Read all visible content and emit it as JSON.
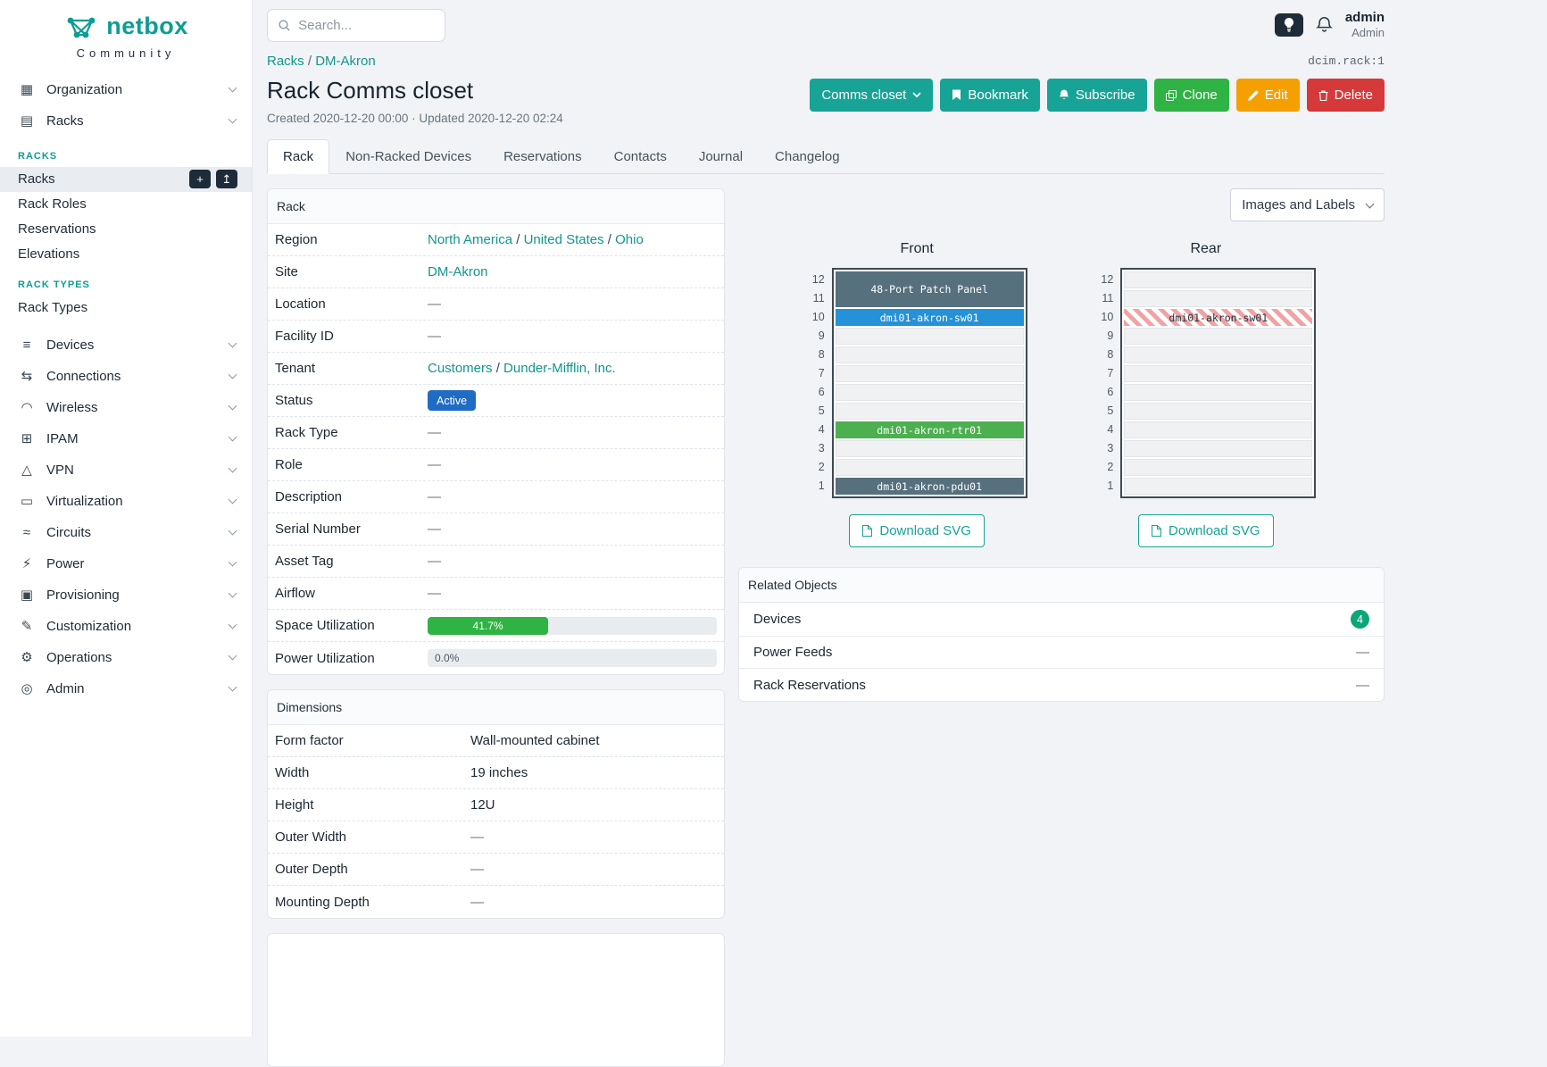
{
  "colors": {
    "accent": "#17a497",
    "green": "#2fb344",
    "orange": "#f59f00",
    "red": "#d63939",
    "status_blue": "#206bc4",
    "progress_green": "#2fb344",
    "badge_green": "#0ca678"
  },
  "brand": {
    "name": "netbox",
    "tagline": "Community"
  },
  "topbar": {
    "search_placeholder": "Search...",
    "user_name": "admin",
    "user_role": "Admin"
  },
  "sidebar": {
    "items": [
      {
        "label": "Organization",
        "icon": "building-icon"
      },
      {
        "label": "Racks",
        "icon": "rack-icon",
        "expanded": true,
        "sections": [
          {
            "header": "RACKS",
            "links": [
              {
                "label": "Racks",
                "active": true,
                "actions": [
                  "add",
                  "import"
                ]
              },
              {
                "label": "Rack Roles"
              },
              {
                "label": "Reservations"
              },
              {
                "label": "Elevations"
              }
            ]
          },
          {
            "header": "RACK TYPES",
            "links": [
              {
                "label": "Rack Types"
              }
            ]
          }
        ]
      },
      {
        "label": "Devices",
        "icon": "devices-icon"
      },
      {
        "label": "Connections",
        "icon": "connections-icon"
      },
      {
        "label": "Wireless",
        "icon": "wireless-icon"
      },
      {
        "label": "IPAM",
        "icon": "ipam-icon"
      },
      {
        "label": "VPN",
        "icon": "vpn-icon"
      },
      {
        "label": "Virtualization",
        "icon": "virtualization-icon"
      },
      {
        "label": "Circuits",
        "icon": "circuits-icon"
      },
      {
        "label": "Power",
        "icon": "power-icon"
      },
      {
        "label": "Provisioning",
        "icon": "provisioning-icon"
      },
      {
        "label": "Customization",
        "icon": "customization-icon"
      },
      {
        "label": "Operations",
        "icon": "operations-icon"
      },
      {
        "label": "Admin",
        "icon": "admin-icon"
      }
    ]
  },
  "breadcrumb": {
    "items": [
      "Racks",
      "DM-Akron"
    ],
    "object_id": "dcim.rack:1"
  },
  "header": {
    "title": "Rack Comms closet",
    "meta": "Created 2020-12-20 00:00 · Updated 2020-12-20 02:24",
    "buttons": [
      {
        "label": "Comms closet",
        "color": "teal",
        "icon": "caret-down-icon"
      },
      {
        "label": "Bookmark",
        "color": "teal",
        "icon": "bookmark-icon"
      },
      {
        "label": "Subscribe",
        "color": "teal",
        "icon": "bell-icon"
      },
      {
        "label": "Clone",
        "color": "green",
        "icon": "copy-icon"
      },
      {
        "label": "Edit",
        "color": "orange",
        "icon": "pencil-icon"
      },
      {
        "label": "Delete",
        "color": "red",
        "icon": "trash-icon"
      }
    ]
  },
  "tabs": {
    "items": [
      {
        "label": "Rack",
        "active": true
      },
      {
        "label": "Non-Racked Devices"
      },
      {
        "label": "Reservations"
      },
      {
        "label": "Contacts"
      },
      {
        "label": "Journal"
      },
      {
        "label": "Changelog"
      }
    ]
  },
  "rack_panel": {
    "title": "Rack",
    "rows": [
      {
        "label": "Region",
        "type": "links",
        "links": [
          "North America",
          "United States",
          "Ohio"
        ]
      },
      {
        "label": "Site",
        "type": "links",
        "links": [
          "DM-Akron"
        ]
      },
      {
        "label": "Location",
        "type": "text",
        "value": "—"
      },
      {
        "label": "Facility ID",
        "type": "text",
        "value": "—"
      },
      {
        "label": "Tenant",
        "type": "links",
        "links": [
          "Customers",
          "Dunder-Mifflin, Inc."
        ]
      },
      {
        "label": "Status",
        "type": "badge",
        "value": "Active"
      },
      {
        "label": "Rack Type",
        "type": "text",
        "value": "—"
      },
      {
        "label": "Role",
        "type": "text",
        "value": "—"
      },
      {
        "label": "Description",
        "type": "text",
        "value": "—"
      },
      {
        "label": "Serial Number",
        "type": "text",
        "value": "—"
      },
      {
        "label": "Asset Tag",
        "type": "text",
        "value": "—"
      },
      {
        "label": "Airflow",
        "type": "text",
        "value": "—"
      },
      {
        "label": "Space Utilization",
        "type": "progress",
        "percent": 41.7,
        "text": "41.7%"
      },
      {
        "label": "Power Utilization",
        "type": "progress",
        "percent": 0,
        "text": "0.0%"
      }
    ]
  },
  "dimensions_panel": {
    "title": "Dimensions",
    "rows": [
      {
        "label": "Form factor",
        "type": "text",
        "value": "Wall-mounted cabinet"
      },
      {
        "label": "Width",
        "type": "text",
        "value": "19 inches"
      },
      {
        "label": "Height",
        "type": "text",
        "value": "12U"
      },
      {
        "label": "Outer Width",
        "type": "text",
        "value": "—"
      },
      {
        "label": "Outer Depth",
        "type": "text",
        "value": "—"
      },
      {
        "label": "Mounting Depth",
        "type": "text",
        "value": "—"
      }
    ]
  },
  "elevations": {
    "view_select": "Images and Labels",
    "download_label": "Download SVG",
    "unit_labels": [
      "12",
      "11",
      "10",
      "9",
      "8",
      "7",
      "6",
      "5",
      "4",
      "3",
      "2",
      "1"
    ],
    "front": {
      "title": "Front",
      "units": [
        {
          "span": 2,
          "label": "48-Port Patch Panel",
          "color": "#56707e"
        },
        {
          "label": "dmi01-akron-sw01",
          "color": "#2591d6"
        },
        {},
        {},
        {},
        {},
        {},
        {
          "label": "dmi01-akron-rtr01",
          "color": "#4caf50"
        },
        {},
        {},
        {
          "label": "dmi01-akron-pdu01",
          "color": "#56707e"
        }
      ]
    },
    "rear": {
      "title": "Rear",
      "units": [
        {},
        {},
        {
          "label": "dmi01-akron-sw01",
          "striped": true
        },
        {},
        {},
        {},
        {},
        {},
        {},
        {},
        {},
        {}
      ]
    }
  },
  "related": {
    "title": "Related Objects",
    "rows": [
      {
        "label": "Devices",
        "badge": "4"
      },
      {
        "label": "Power Feeds",
        "value": "—"
      },
      {
        "label": "Rack Reservations",
        "value": "—"
      }
    ]
  }
}
